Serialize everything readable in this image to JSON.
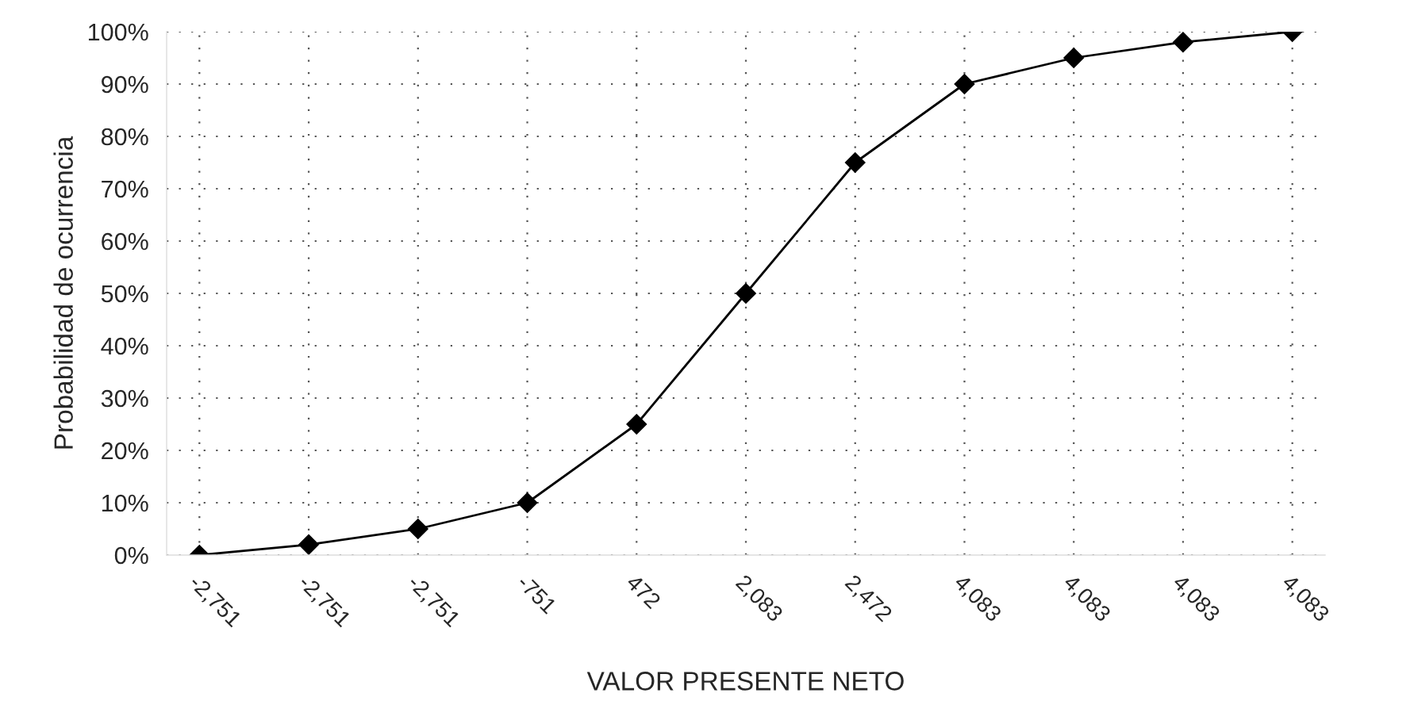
{
  "chart_data": {
    "type": "line",
    "xlabel": "VALOR PRESENTE NETO",
    "ylabel": "Probabilidad de ocurrencia",
    "categories": [
      "-2,751",
      "-2,751",
      "-2,751",
      "-751",
      "472",
      "2,083",
      "2,472",
      "4,083",
      "4,083",
      "4,083",
      "4,083"
    ],
    "series": [
      {
        "color": "#000000",
        "values": [
          0,
          2,
          5,
          10,
          25,
          50,
          75,
          90,
          95,
          98,
          100
        ]
      }
    ],
    "ylim": [
      0,
      100
    ],
    "yticks": [
      {
        "value": 0,
        "label": "0%"
      },
      {
        "value": 10,
        "label": "10%"
      },
      {
        "value": 20,
        "label": "20%"
      },
      {
        "value": 30,
        "label": "30%"
      },
      {
        "value": 40,
        "label": "40%"
      },
      {
        "value": 50,
        "label": "50%"
      },
      {
        "value": 60,
        "label": "60%"
      },
      {
        "value": 70,
        "label": "70%"
      },
      {
        "value": 80,
        "label": "80%"
      },
      {
        "value": 90,
        "label": "90%"
      },
      {
        "value": 100,
        "label": "100%"
      }
    ],
    "grid": true,
    "marker": "diamond",
    "line_style": "solid"
  }
}
